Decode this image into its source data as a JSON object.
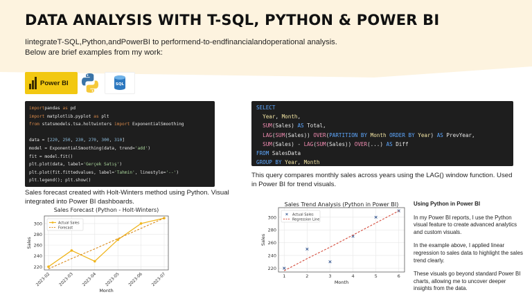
{
  "title": "DATA ANALYSIS WITH T-SQL, PYTHON & POWER BI",
  "intro": "IintegrateT-SQL,Python,andPowerBI to performend-to-endfinancialandoperational analysis. Below are brief examples from my work:",
  "logos": {
    "powerbi_label": "Power BI",
    "sql_label": "SQL"
  },
  "python_code": [
    [
      [
        "kw",
        "import"
      ],
      [
        "",
        "pandas "
      ],
      [
        "kw",
        "as"
      ],
      [
        "",
        " pd"
      ]
    ],
    [
      [
        "kw",
        "import"
      ],
      [
        "",
        " matplotlib.pyplot "
      ],
      [
        "kw",
        "as"
      ],
      [
        "",
        " plt"
      ]
    ],
    [
      [
        "kw",
        "from"
      ],
      [
        "",
        " statsmodels.tsa.holtwinters "
      ],
      [
        "kw",
        "import"
      ],
      [
        "",
        " ExponentialSmoothing"
      ]
    ],
    [],
    [
      [
        "",
        "data = ["
      ],
      [
        "num",
        "220"
      ],
      [
        ", "
      ],
      [
        "num",
        "250"
      ],
      [
        ", "
      ],
      [
        "num",
        "230"
      ],
      [
        ", "
      ],
      [
        "num",
        "270"
      ],
      [
        ", "
      ],
      [
        "num",
        "300"
      ],
      [
        ", "
      ],
      [
        "num",
        "310"
      ],
      [
        "",
        "]"
      ]
    ],
    [
      [
        "",
        "model = ExponentialSmoothing(data, trend="
      ],
      [
        "str",
        "'add'"
      ],
      [
        "",
        ")"
      ]
    ],
    [
      [
        "",
        "fit = model.fit()"
      ]
    ],
    [
      [
        "",
        "plt.plot(data, label="
      ],
      [
        "str",
        "'Gerçek Satış'"
      ],
      [
        "",
        ")"
      ]
    ],
    [
      [
        "",
        "plt.plot(fit.fittedvalues, label="
      ],
      [
        "str",
        "'Tahmin'"
      ],
      [
        "",
        ", linestyle="
      ],
      [
        "str",
        "'--'"
      ],
      [
        "",
        ")"
      ]
    ],
    [
      [
        "",
        "plt.legend(); plt.show()"
      ]
    ]
  ],
  "python_caption": "Sales forecast created with Holt-Winters method using Python. Visual integrated into Power BI dashboards.",
  "sql_code": [
    [
      [
        "sqlkw",
        "SELECT"
      ]
    ],
    [
      [
        "",
        "  "
      ],
      [
        "sqlcol",
        "Year"
      ],
      [
        "",
        ", "
      ],
      [
        "sqlcol",
        "Month"
      ],
      [
        "",
        ","
      ]
    ],
    [
      [
        "",
        "  "
      ],
      [
        "sqlfn",
        "SUM"
      ],
      [
        "",
        "(Sales) "
      ],
      [
        "sqlkw",
        "AS"
      ],
      [
        "",
        " Total,"
      ]
    ],
    [
      [
        "",
        "  "
      ],
      [
        "sqlfn",
        "LAG"
      ],
      [
        "",
        "("
      ],
      [
        "sqlfn",
        "SUM"
      ],
      [
        "",
        "(Sales)) "
      ],
      [
        "sqlfn",
        "OVER"
      ],
      [
        "",
        "("
      ],
      [
        "sqlkw",
        "PARTITION BY"
      ],
      [
        "",
        " "
      ],
      [
        "sqlcol",
        "Month"
      ],
      [
        "",
        " "
      ],
      [
        "sqlkw",
        "ORDER BY"
      ],
      [
        "",
        " "
      ],
      [
        "sqlcol",
        "Year"
      ],
      [
        "",
        ") "
      ],
      [
        "sqlkw",
        "AS"
      ],
      [
        "",
        " PrevYear,"
      ]
    ],
    [
      [
        "",
        "  "
      ],
      [
        "sqlfn",
        "SUM"
      ],
      [
        "",
        "(Sales) - "
      ],
      [
        "sqlfn",
        "LAG"
      ],
      [
        "",
        "("
      ],
      [
        "sqlfn",
        "SUM"
      ],
      [
        "",
        "(Sales)) "
      ],
      [
        "sqlfn",
        "OVER"
      ],
      [
        "",
        "(...) "
      ],
      [
        "sqlkw",
        "AS"
      ],
      [
        "",
        " Diff"
      ]
    ],
    [
      [
        "sqlkw",
        "FROM"
      ],
      [
        "",
        " SalesData"
      ]
    ],
    [
      [
        "sqlkw",
        "GROUP BY"
      ],
      [
        "",
        " "
      ],
      [
        "sqlcol",
        "Year"
      ],
      [
        "",
        ", "
      ],
      [
        "sqlcol",
        "Month"
      ]
    ]
  ],
  "sql_caption": "This query compares monthly sales across years using the LAG() window function. Used in Power BI for trend visuals.",
  "side_panel": {
    "heading": "Using Python in Power BI",
    "p1": "In my Power BI reports, I use the Python visual feature to create advanced analytics and custom visuals.",
    "p2": " In the example above, I applied linear regression to sales data to highlight the sales trend clearly.",
    "p3": "These visuals go beyond standard Power BI charts, allowing me to uncover deeper insights from the data."
  },
  "chart_data": [
    {
      "type": "line",
      "title": "Sales Forecast (Python - Holt-Winters)",
      "xlabel": "Month",
      "ylabel": "Sales",
      "categories": [
        "2023-02",
        "2023-03",
        "2023-04",
        "2023-05",
        "2023-06",
        "2023-07"
      ],
      "series": [
        {
          "name": "Actual Sales",
          "values": [
            220,
            250,
            230,
            270,
            300,
            310
          ],
          "color": "#f0b51c",
          "style": "solid-marker"
        },
        {
          "name": "Forecast",
          "values": [
            216,
            235,
            253,
            272,
            291,
            310
          ],
          "color": "#d98a1a",
          "style": "dashed"
        }
      ],
      "yticks": [
        220,
        240,
        260,
        280,
        300
      ],
      "ylim": [
        214,
        314
      ],
      "grid": true,
      "legend": "top-left"
    },
    {
      "type": "scatter",
      "title": "Sales Trend Analysis (Python in Power BI)",
      "xlabel": "Month",
      "ylabel": "Sales",
      "x": [
        1,
        2,
        3,
        4,
        5,
        6
      ],
      "series": [
        {
          "name": "Actual Sales",
          "values": [
            220,
            250,
            230,
            270,
            300,
            310
          ],
          "color": "#2b4f8c",
          "style": "x-marker"
        },
        {
          "name": "Regression Line",
          "values": [
            216,
            235,
            253,
            272,
            291,
            310
          ],
          "color": "#d44a3a",
          "style": "dashed"
        }
      ],
      "xticks": [
        1,
        2,
        3,
        4,
        5,
        6
      ],
      "yticks": [
        220,
        240,
        260,
        280,
        300
      ],
      "xlim": [
        0.75,
        6.25
      ],
      "ylim": [
        214,
        315
      ],
      "grid": true,
      "legend": "top-left"
    }
  ],
  "colors": {
    "background_accent": "#fdf3df",
    "powerbi_yellow": "#f2c811",
    "code_bg": "#1e1e1e"
  },
  "icons": [
    "powerbi-logo",
    "python-logo",
    "sql-database-icon"
  ]
}
